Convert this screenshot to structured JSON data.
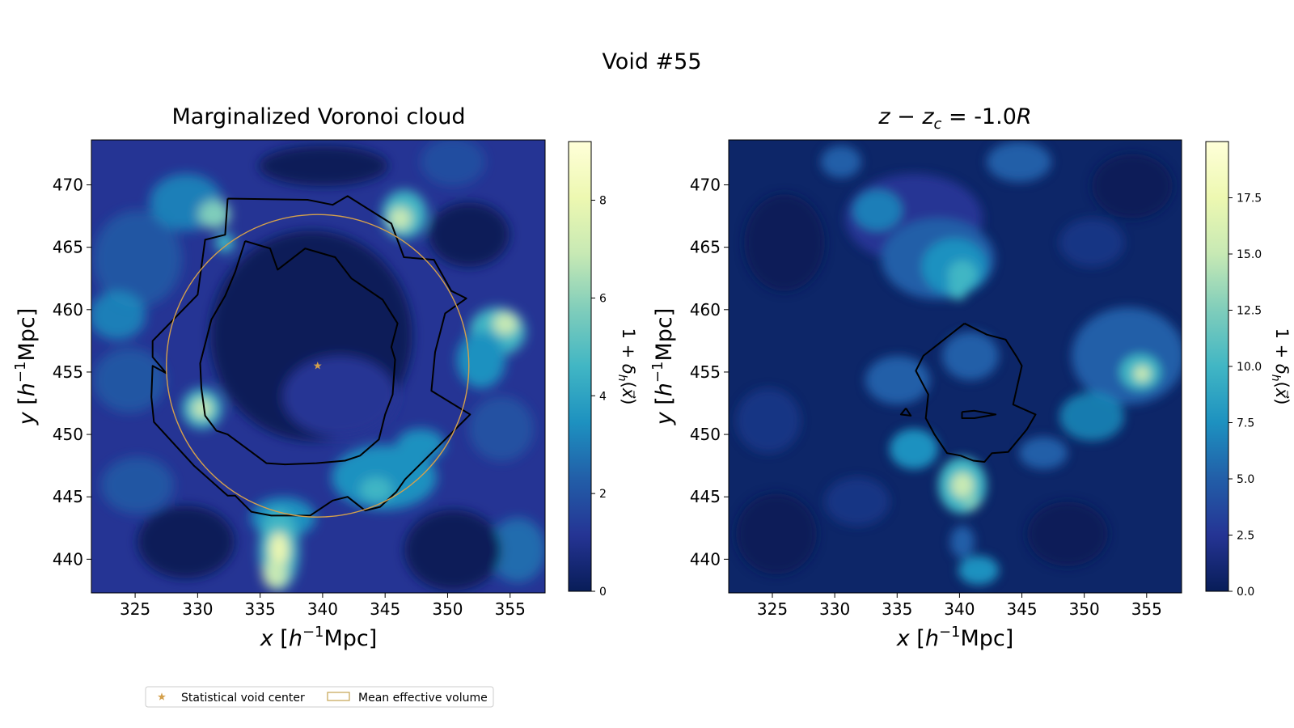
{
  "figure": {
    "title": "Void #55"
  },
  "chart_data": [
    {
      "type": "heatmap",
      "title": "Marginalized Voronoi cloud",
      "xlabel": "x [h⁻¹Mpc]",
      "ylabel": "y [h⁻¹Mpc]",
      "xlim": [
        321.5,
        357.8
      ],
      "ylim": [
        437.3,
        473.6
      ],
      "xticks": [
        325,
        330,
        335,
        340,
        345,
        350,
        355
      ],
      "yticks": [
        440,
        445,
        450,
        455,
        460,
        465,
        470
      ],
      "colorbar": {
        "label": "1 + δh(x⃗)",
        "range": [
          0,
          9.2
        ],
        "ticks": [
          0,
          2,
          4,
          6,
          8
        ],
        "colormap": "YlGnBu_r",
        "colors": [
          "#081d58",
          "#253494",
          "#225ea8",
          "#1d91c0",
          "#41b6c4",
          "#7fcdbb",
          "#c7e9b4",
          "#edf8b1",
          "#ffffd9"
        ]
      },
      "overlays": {
        "void_center": {
          "x": 339.6,
          "y": 455.5,
          "color": "#d4a04c"
        },
        "mean_effective_volume": {
          "center": [
            339.6,
            455.5
          ],
          "radius": 12.1,
          "color": "#d4a04c"
        },
        "contours": [
          {
            "level": "outer",
            "points": [
              [
                332.4,
                468.9
              ],
              [
                338.8,
                468.8
              ],
              [
                340.8,
                468.4
              ],
              [
                342,
                469.1
              ],
              [
                345.5,
                466.9
              ],
              [
                346.5,
                464.2
              ],
              [
                348.9,
                464
              ],
              [
                350.3,
                461.5
              ],
              [
                351.5,
                460.9
              ],
              [
                349.8,
                459.7
              ],
              [
                349,
                456.6
              ],
              [
                348.7,
                453.5
              ],
              [
                351.8,
                451.6
              ],
              [
                349.4,
                449.2
              ],
              [
                346.6,
                446.4
              ],
              [
                345.9,
                445.4
              ],
              [
                344.6,
                444.2
              ],
              [
                343.4,
                443.9
              ],
              [
                342,
                445
              ],
              [
                340.8,
                444.7
              ],
              [
                339,
                443.5
              ],
              [
                335.9,
                443.5
              ],
              [
                334.3,
                443.8
              ],
              [
                333,
                445.1
              ],
              [
                332.4,
                445.1
              ],
              [
                329.7,
                447.5
              ],
              [
                326.5,
                451
              ],
              [
                326.3,
                453
              ],
              [
                326.4,
                455.5
              ],
              [
                327.5,
                454.9
              ],
              [
                326.4,
                456.2
              ],
              [
                326.4,
                457.5
              ],
              [
                330,
                461.2
              ],
              [
                330.6,
                465.6
              ],
              [
                332.2,
                466
              ],
              [
                332.4,
                468.9
              ]
            ]
          },
          {
            "level": "inner",
            "points": [
              [
                333.8,
                465.5
              ],
              [
                335.8,
                464.9
              ],
              [
                336.4,
                463.2
              ],
              [
                338.6,
                464.9
              ],
              [
                341,
                464.2
              ],
              [
                342.3,
                462.5
              ],
              [
                344.8,
                460.8
              ],
              [
                346,
                458.9
              ],
              [
                345.5,
                457
              ],
              [
                345.8,
                456
              ],
              [
                345.6,
                453.2
              ],
              [
                345,
                451.6
              ],
              [
                344.5,
                449.6
              ],
              [
                343,
                448.3
              ],
              [
                341.8,
                447.9
              ],
              [
                339.5,
                447.7
              ],
              [
                337,
                447.6
              ],
              [
                335.5,
                447.7
              ],
              [
                334.3,
                448.6
              ],
              [
                332.4,
                450
              ],
              [
                331.5,
                450.3
              ],
              [
                330.6,
                451.5
              ],
              [
                330.3,
                453.7
              ],
              [
                330.2,
                455.7
              ],
              [
                331.1,
                459.2
              ],
              [
                332.2,
                461.1
              ],
              [
                333,
                463
              ],
              [
                333.8,
                465.5
              ]
            ]
          }
        ]
      }
    },
    {
      "type": "heatmap",
      "title": "z − zc = -1.0R",
      "xlabel": "x [h⁻¹Mpc]",
      "ylabel": "y [h⁻¹Mpc]",
      "xlim": [
        321.5,
        357.8
      ],
      "ylim": [
        437.3,
        473.6
      ],
      "xticks": [
        325,
        330,
        335,
        340,
        345,
        350,
        355
      ],
      "yticks": [
        440,
        445,
        450,
        455,
        460,
        465,
        470
      ],
      "colorbar": {
        "label": "1 + δh(x⃗)",
        "range": [
          0,
          20
        ],
        "ticks": [
          0.0,
          2.5,
          5.0,
          7.5,
          10.0,
          12.5,
          15.0,
          17.5
        ],
        "tick_labels": [
          "0.0",
          "2.5",
          "5.0",
          "7.5",
          "10.0",
          "12.5",
          "15.0",
          "17.5"
        ],
        "colormap": "YlGnBu_r",
        "colors": [
          "#081d58",
          "#253494",
          "#225ea8",
          "#1d91c0",
          "#41b6c4",
          "#7fcdbb",
          "#c7e9b4",
          "#edf8b1",
          "#ffffd9"
        ]
      },
      "overlays": {
        "contours": [
          {
            "level": "main",
            "points": [
              [
                340.4,
                458.9
              ],
              [
                342.2,
                458
              ],
              [
                343.7,
                457.6
              ],
              [
                344.6,
                456.2
              ],
              [
                345,
                455.5
              ],
              [
                344.3,
                452.4
              ],
              [
                346.1,
                451.6
              ],
              [
                345.4,
                450.4
              ],
              [
                343.9,
                448.6
              ],
              [
                342.6,
                448.5
              ],
              [
                342,
                447.8
              ],
              [
                341.1,
                447.9
              ],
              [
                340.1,
                448.3
              ],
              [
                339,
                448.5
              ],
              [
                338,
                450
              ],
              [
                337.3,
                451.3
              ],
              [
                337.5,
                453.2
              ],
              [
                336.5,
                455.1
              ],
              [
                337.1,
                456.3
              ],
              [
                340.4,
                458.9
              ]
            ]
          },
          {
            "level": "small-triangle",
            "points": [
              [
                335.7,
                452.1
              ],
              [
                336.1,
                451.5
              ],
              [
                335.3,
                451.6
              ],
              [
                335.7,
                452.1
              ]
            ]
          },
          {
            "level": "small-sliver",
            "points": [
              [
                340.2,
                451.8
              ],
              [
                341.2,
                451.9
              ],
              [
                342.9,
                451.6
              ],
              [
                341.2,
                451.3
              ],
              [
                340.2,
                451.3
              ],
              [
                340.2,
                451.8
              ]
            ]
          }
        ]
      }
    }
  ],
  "legend": {
    "placement": "bottom-left",
    "entries": [
      {
        "label": "Statistical void center",
        "marker": "star",
        "color": "#d4a04c"
      },
      {
        "label": "Mean effective volume",
        "marker": "rect",
        "color": "#c5a452"
      }
    ]
  }
}
